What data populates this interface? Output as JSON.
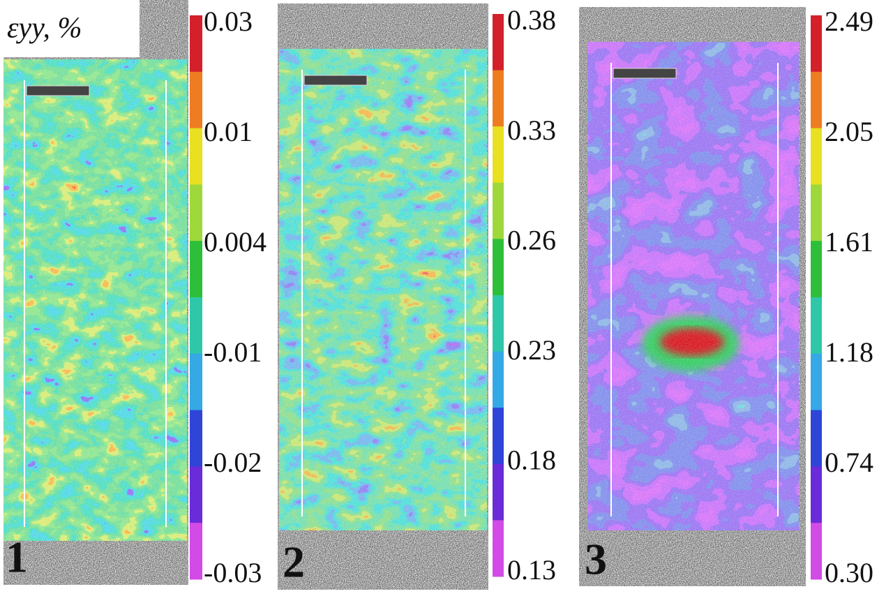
{
  "axis_label": "εyy, %",
  "panels": [
    {
      "label": "1",
      "colorbar": {
        "ticks": [
          "0.03",
          "0.01",
          "0.004",
          "-0.01",
          "-0.02",
          "-0.03"
        ]
      }
    },
    {
      "label": "2",
      "colorbar": {
        "ticks": [
          "0.38",
          "0.33",
          "0.26",
          "0.23",
          "0.18",
          "0.13"
        ]
      }
    },
    {
      "label": "3",
      "colorbar": {
        "ticks": [
          "2.49",
          "2.05",
          "1.61",
          "1.18",
          "0.74",
          "0.30"
        ]
      }
    }
  ]
}
